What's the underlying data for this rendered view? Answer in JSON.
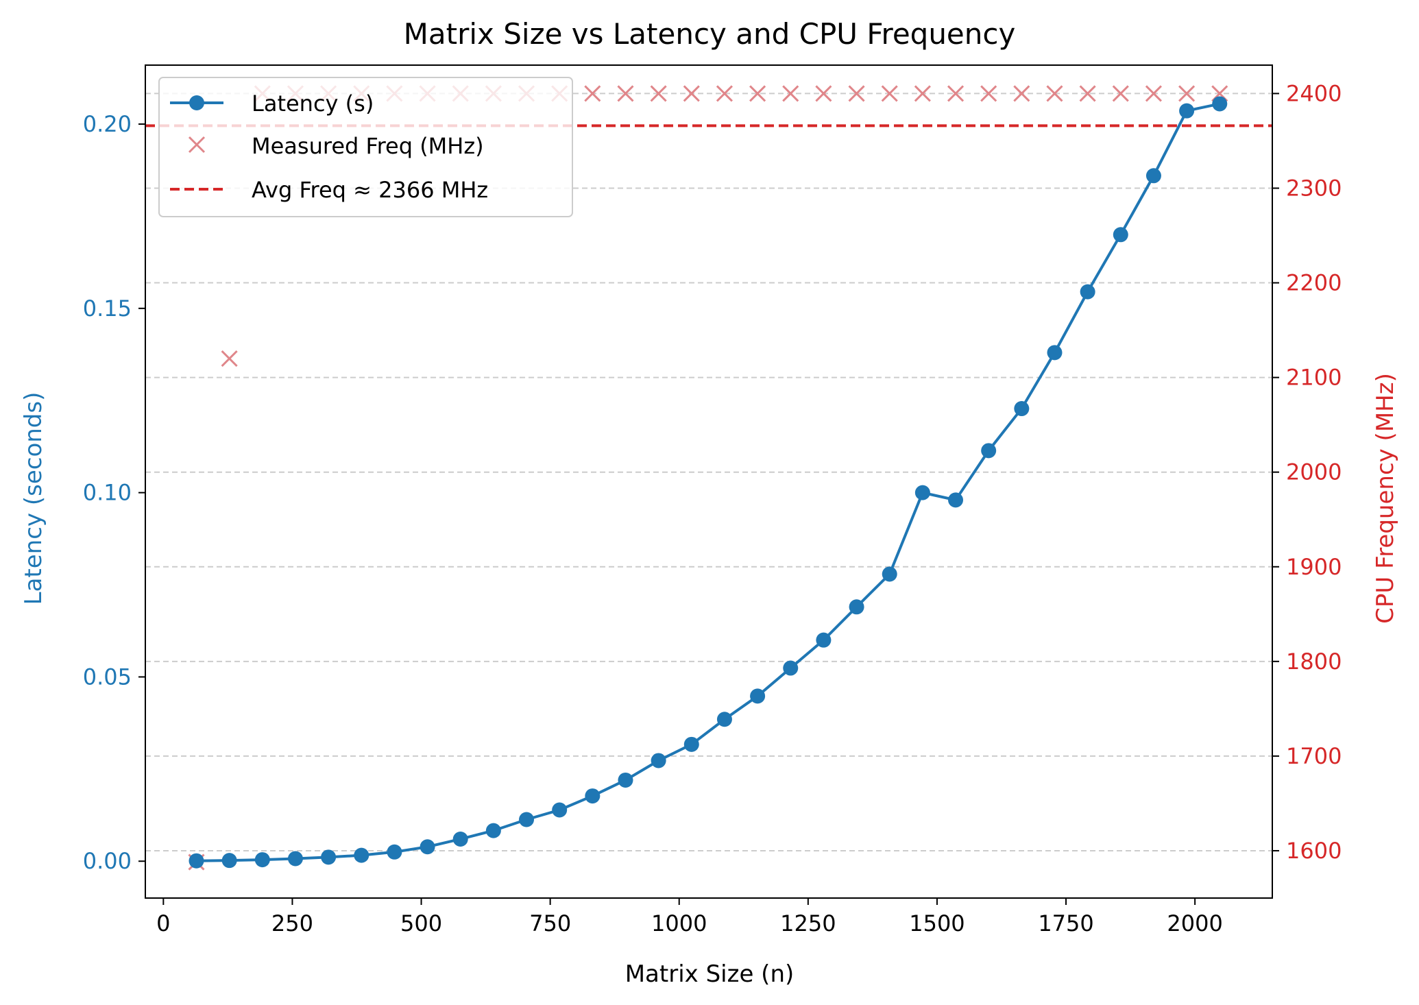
{
  "chart_data": {
    "type": "line",
    "title": "Matrix Size vs Latency and CPU Frequency",
    "xlabel": "Matrix Size (n)",
    "ylabel_left": "Latency (seconds)",
    "ylabel_right": "CPU Frequency (MHz)",
    "xlim": [
      -35,
      2150
    ],
    "ylim_left": [
      -0.01,
      0.216
    ],
    "ylim_right": [
      1550,
      2430
    ],
    "x_ticks": [
      0,
      250,
      500,
      750,
      1000,
      1250,
      1500,
      1750,
      2000
    ],
    "x_tick_labels": [
      "0",
      "250",
      "500",
      "750",
      "1000",
      "1250",
      "1500",
      "1750",
      "2000"
    ],
    "y_left_ticks": [
      0.0,
      0.05,
      0.1,
      0.15,
      0.2
    ],
    "y_left_tick_labels": [
      "0.00",
      "0.05",
      "0.10",
      "0.15",
      "0.20"
    ],
    "y_right_ticks": [
      1600,
      1700,
      1800,
      1900,
      2000,
      2100,
      2200,
      2300,
      2400
    ],
    "y_right_tick_labels": [
      "1600",
      "1700",
      "1800",
      "1900",
      "2000",
      "2100",
      "2200",
      "2300",
      "2400"
    ],
    "grid": "horizontal dashed (right axis ticks)",
    "legend_position": "top-left",
    "x": [
      64,
      128,
      192,
      256,
      320,
      384,
      448,
      512,
      576,
      640,
      704,
      768,
      832,
      896,
      960,
      1024,
      1088,
      1152,
      1216,
      1280,
      1344,
      1408,
      1472,
      1536,
      1600,
      1664,
      1728,
      1792,
      1856,
      1920,
      1984,
      2048
    ],
    "series": [
      {
        "name": "Latency (s)",
        "axis": "left",
        "style": "line-marker-circle",
        "color": "#1f77b4",
        "values": [
          0.0001,
          0.0002,
          0.0004,
          0.0007,
          0.0011,
          0.0016,
          0.0025,
          0.0039,
          0.006,
          0.0083,
          0.0113,
          0.0139,
          0.0177,
          0.022,
          0.0273,
          0.0317,
          0.0385,
          0.0448,
          0.0524,
          0.06,
          0.069,
          0.0779,
          0.1,
          0.098,
          0.1114,
          0.1228,
          0.138,
          0.1545,
          0.17,
          0.186,
          0.2036,
          0.2055
        ]
      },
      {
        "name": "Measured Freq (MHz)",
        "axis": "right",
        "style": "marker-x",
        "color": "#e0868a",
        "values": [
          1588,
          2120,
          2400,
          2400,
          2400,
          2400,
          2400,
          2400,
          2400,
          2400,
          2400,
          2400,
          2400,
          2400,
          2400,
          2400,
          2400,
          2400,
          2400,
          2400,
          2400,
          2400,
          2400,
          2400,
          2400,
          2400,
          2400,
          2400,
          2400,
          2400,
          2400,
          2400
        ]
      },
      {
        "name": "Avg Freq ≈ 2366 MHz",
        "axis": "right",
        "style": "hline-dashed",
        "color": "#d62728",
        "value": 2366
      }
    ]
  },
  "colors": {
    "left_axis": "#1f77b4",
    "right_axis": "#d62728",
    "grid": "#cccccc"
  }
}
